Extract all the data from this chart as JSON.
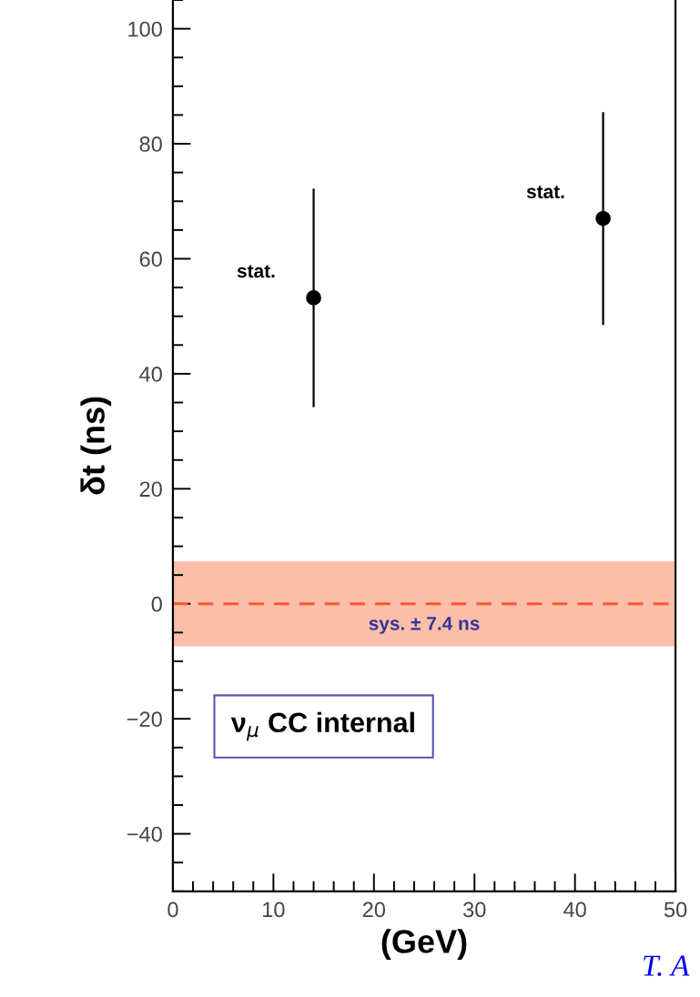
{
  "chart_data": {
    "type": "scatter",
    "xlabel": "(GeV)",
    "ylabel": "δt (ns)",
    "x": [
      14.0,
      42.8
    ],
    "values": [
      53.2,
      67.0
    ],
    "errors": [
      19,
      18.5
    ],
    "color": "#000000",
    "marker": "circle",
    "xlim": [
      0,
      50
    ],
    "xticks": [
      0,
      10,
      20,
      30,
      40,
      50
    ],
    "ylim": [
      -50,
      105
    ],
    "yticks": [
      -40,
      -20,
      0,
      20,
      40,
      60,
      80,
      100
    ],
    "grid": false,
    "ref_lines": [
      {
        "axis": "y",
        "value": 0,
        "color": "#ff5533",
        "line_style": "dashed"
      }
    ],
    "bands": [
      {
        "axis": "y",
        "from": -7.4,
        "to": 7.4,
        "label": "sys. ± 7.4 ns",
        "color": "#fcbfaa"
      }
    ],
    "annotations": [
      {
        "text": "stat.",
        "x": 14.0,
        "y": 53.2
      },
      {
        "text": "stat.",
        "x": 42.8,
        "y": 67.0
      },
      "ν$_{μ}$ CC internal",
      "T. A"
    ]
  }
}
